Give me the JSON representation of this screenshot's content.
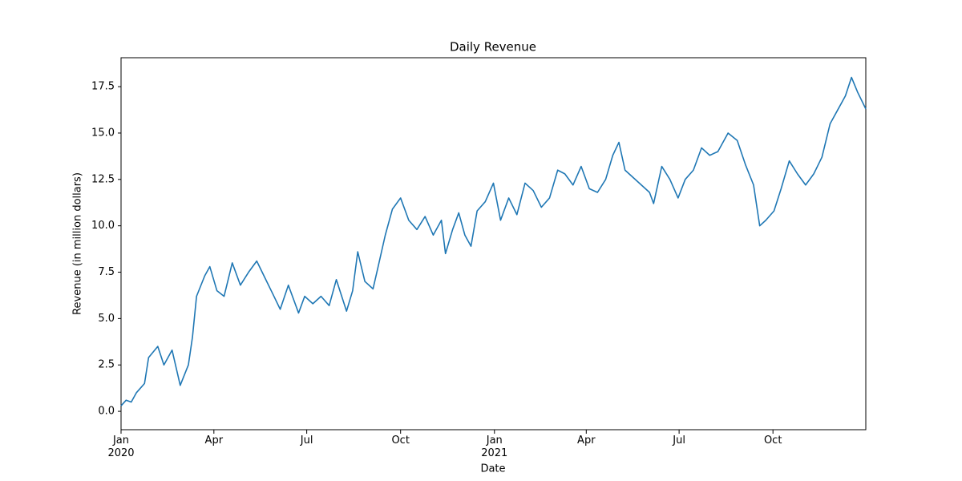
{
  "chart_data": {
    "type": "line",
    "title": "Daily Revenue",
    "x_label": "Date",
    "y_label": "Revenue (in million dollars)",
    "x": [
      0,
      5,
      10,
      15,
      23,
      27,
      36,
      42,
      50,
      58,
      66,
      70,
      74,
      82,
      87,
      94,
      101,
      109,
      117,
      125,
      133,
      141,
      149,
      156,
      164,
      174,
      180,
      188,
      196,
      204,
      211,
      221,
      227,
      232,
      239,
      247,
      252,
      259,
      266,
      274,
      282,
      290,
      298,
      306,
      314,
      318,
      325,
      331,
      337,
      343,
      349,
      357,
      365,
      372,
      380,
      388,
      396,
      404,
      412,
      420,
      428,
      435,
      443,
      451,
      459,
      467,
      475,
      482,
      488,
      494,
      502,
      510,
      518,
      522,
      530,
      538,
      546,
      553,
      561,
      569,
      577,
      585,
      595,
      604,
      612,
      620,
      626,
      632,
      640,
      647,
      655,
      663,
      671,
      679,
      687,
      695,
      702,
      710,
      716,
      722,
      730
    ],
    "values": [
      0.3,
      0.6,
      0.5,
      1.0,
      1.5,
      2.9,
      3.5,
      2.5,
      3.3,
      1.4,
      2.5,
      4.0,
      6.2,
      7.3,
      7.8,
      6.5,
      6.2,
      8.0,
      6.8,
      7.5,
      8.1,
      7.2,
      6.3,
      5.5,
      6.8,
      5.3,
      6.2,
      5.8,
      6.2,
      5.7,
      7.1,
      5.4,
      6.5,
      8.6,
      7.0,
      6.6,
      7.8,
      9.5,
      10.9,
      11.5,
      10.3,
      9.8,
      10.5,
      9.5,
      10.3,
      8.5,
      9.8,
      10.7,
      9.5,
      8.9,
      10.8,
      11.3,
      12.3,
      10.3,
      11.5,
      10.6,
      12.3,
      11.9,
      11.0,
      11.5,
      13.0,
      12.8,
      12.2,
      13.2,
      12.0,
      11.8,
      12.5,
      13.8,
      14.5,
      13.0,
      12.6,
      12.2,
      11.8,
      11.2,
      13.2,
      12.5,
      11.5,
      12.5,
      13.0,
      14.2,
      13.8,
      14.0,
      15.0,
      14.6,
      13.3,
      12.2,
      10.0,
      10.3,
      10.8,
      12.0,
      13.5,
      12.8,
      12.2,
      12.8,
      13.7,
      15.5,
      16.2,
      17.0,
      18.0,
      17.2,
      16.3
    ],
    "color": "#1f77b4",
    "xlim": [
      0,
      730
    ],
    "xticks": [
      {
        "value": 0,
        "label": "Jan\n2020"
      },
      {
        "value": 91,
        "label": "Apr"
      },
      {
        "value": 182,
        "label": "Jul"
      },
      {
        "value": 274,
        "label": "Oct"
      },
      {
        "value": 366,
        "label": "Jan\n2021"
      },
      {
        "value": 456,
        "label": "Apr"
      },
      {
        "value": 547,
        "label": "Jul"
      },
      {
        "value": 639,
        "label": "Oct"
      }
    ],
    "ylim": [
      -0.99,
      19.06
    ],
    "yticks": [
      {
        "value": 0,
        "label": "0.0"
      },
      {
        "value": 2.5,
        "label": "2.5"
      },
      {
        "value": 5,
        "label": "5.0"
      },
      {
        "value": 7.5,
        "label": "7.5"
      },
      {
        "value": 10,
        "label": "10.0"
      },
      {
        "value": 12.5,
        "label": "12.5"
      },
      {
        "value": 15,
        "label": "15.0"
      },
      {
        "value": 17.5,
        "label": "17.5"
      }
    ],
    "grid": false
  }
}
